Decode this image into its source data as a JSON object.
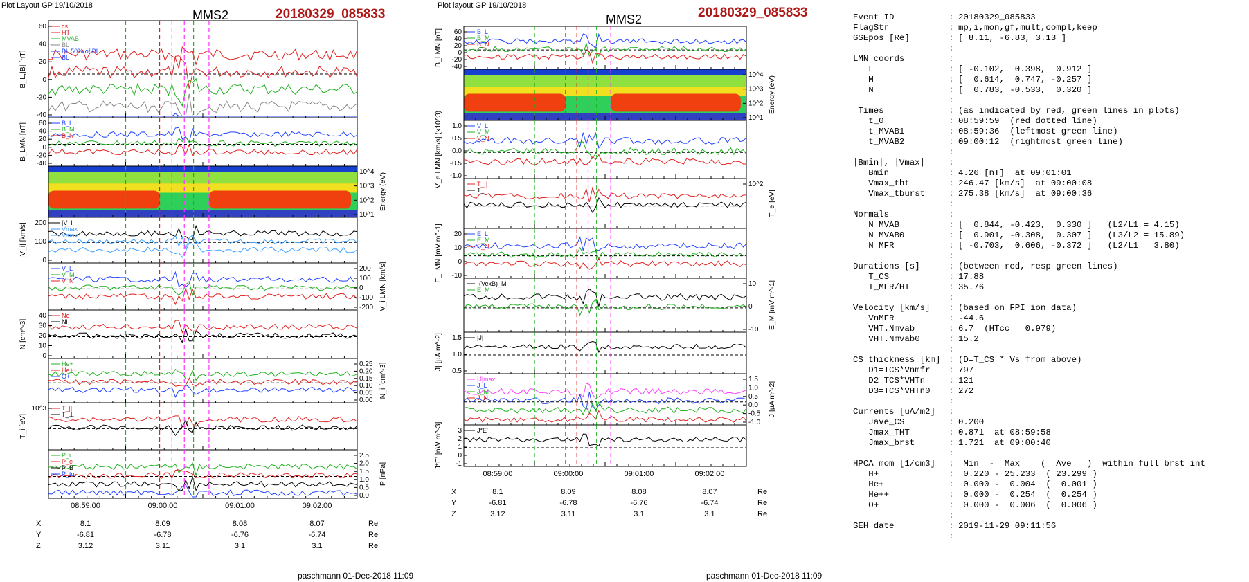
{
  "left_panel": {
    "header_left": "Plot Layout GP 19/10/2018",
    "probe": "MMS2",
    "event_id": "20180329_085833",
    "footer": "paschmann 01-Dec-2018 11:09",
    "time_ticks": [
      "08:59:00",
      "09:00:00",
      "09:01:00",
      "09:02:00"
    ],
    "coords": {
      "labels": [
        "X",
        "Y",
        "Z"
      ],
      "unit": "Re",
      "values": [
        [
          "8.1",
          "8.09",
          "8.08",
          "8.07"
        ],
        [
          "-6.81",
          "-6.78",
          "-6.76",
          "-6.74"
        ],
        [
          "3.12",
          "3.11",
          "3.1",
          "3.1"
        ]
      ]
    },
    "panels": [
      {
        "ylabel": "B_L,|B| [nT]",
        "ticks_left": [
          "60",
          "40",
          "20",
          "0",
          "-20",
          "-40"
        ],
        "ticks_right": [],
        "legend": [
          "cs",
          "HT",
          "MVAB",
          "BL",
          "BL 50% of BL",
          "BL"
        ],
        "legend_colors": [
          "#e02020",
          "#e02020",
          "#20b020",
          "#888888",
          "#2040ff",
          "#2040ff"
        ]
      },
      {
        "ylabel": "B_LMN [nT]",
        "ticks_left": [
          "60",
          "40",
          "20",
          "0",
          "-20",
          "-40"
        ],
        "ticks_right": [],
        "legend": [
          "B_L",
          "B_M",
          "B_N"
        ],
        "legend_colors": [
          "#2040ff",
          "#20b020",
          "#e02020"
        ]
      },
      {
        "ylabel": "Energy (eV)",
        "ticks_left": [],
        "ticks_right": [
          "10^4",
          "10^3",
          "10^2",
          "10^1"
        ],
        "legend": [],
        "legend_colors": []
      },
      {
        "ylabel": "|V_i| [km/s]",
        "ticks_left": [
          "200",
          "100",
          "0"
        ],
        "ticks_right": [],
        "legend": [
          "|V_i|",
          "Vmax",
          "Vmax"
        ],
        "legend_colors": [
          "#000000",
          "#40a0ff",
          "#40a0ff"
        ]
      },
      {
        "ylabel": "V_i LMN [km/s]",
        "ticks_left": [],
        "ticks_right": [
          "200",
          "100",
          "0",
          "-100",
          "-200"
        ],
        "legend": [
          "V_L",
          "V_M",
          "V_N"
        ],
        "legend_colors": [
          "#2040ff",
          "#20b020",
          "#e02020"
        ]
      },
      {
        "ylabel": "N [cm^-3]",
        "ticks_left": [
          "40",
          "30",
          "20",
          "10",
          "0"
        ],
        "ticks_right": [],
        "legend": [
          "Ne",
          "Ni"
        ],
        "legend_colors": [
          "#e02020",
          "#000000"
        ]
      },
      {
        "ylabel": "N_i [cm^-3]",
        "ticks_left": [],
        "ticks_right": [
          "0.25",
          "0.20",
          "0.15",
          "0.10",
          "0.05",
          "0.00"
        ],
        "legend": [
          "He+",
          "He++",
          "O+"
        ],
        "legend_colors": [
          "#20b020",
          "#e02020",
          "#2040ff"
        ]
      },
      {
        "ylabel": "T_i [eV]",
        "ticks_left": [
          "10^3"
        ],
        "ticks_right": [],
        "legend": [
          "T_||",
          "T_⊥"
        ],
        "legend_colors": [
          "#e02020",
          "#000000"
        ]
      },
      {
        "ylabel": "P [nPa]",
        "ticks_left": [],
        "ticks_right": [
          "2.5",
          "2.0",
          "1.5",
          "1.0",
          "0.5",
          "0.0"
        ],
        "legend": [
          "P_i",
          "P_e",
          "P_B",
          "P_tot"
        ],
        "legend_colors": [
          "#20b020",
          "#e02020",
          "#000000",
          "#2040ff"
        ]
      }
    ]
  },
  "middle_panel": {
    "header_left": "Plot layout GP 19/10/2018",
    "probe": "MMS2",
    "event_id": "20180329_085833",
    "footer": "paschmann 01-Dec-2018 11:09",
    "time_ticks": [
      "08:59:00",
      "09:00:00",
      "09:01:00",
      "09:02:00"
    ],
    "coords": {
      "labels": [
        "X",
        "Y",
        "Z"
      ],
      "unit": "Re",
      "values": [
        [
          "8.1",
          "8.09",
          "8.08",
          "8.07"
        ],
        [
          "-6.81",
          "-6.78",
          "-6.76",
          "-6.74"
        ],
        [
          "3.12",
          "3.11",
          "3.1",
          "3.1"
        ]
      ]
    },
    "panels": [
      {
        "ylabel": "B_LMN [nT]",
        "ticks_left": [
          "60",
          "40",
          "20",
          "0",
          "-20",
          "-40"
        ],
        "ticks_right": [],
        "legend": [
          "B_L",
          "B_M",
          "B_N"
        ],
        "legend_colors": [
          "#2040ff",
          "#20b020",
          "#e02020"
        ]
      },
      {
        "ylabel": "Energy (eV)",
        "ticks_left": [],
        "ticks_right": [
          "10^4",
          "10^3",
          "10^2",
          "10^1"
        ],
        "legend": [],
        "legend_colors": []
      },
      {
        "ylabel": "V_e LMN [km/s] (x10^3)",
        "ticks_left": [
          "1.0",
          "0.5",
          "0.0",
          "-0.5",
          "-1.0"
        ],
        "ticks_right": [],
        "legend": [
          "V_L",
          "V_M",
          "V_N"
        ],
        "legend_colors": [
          "#2040ff",
          "#20b020",
          "#e02020"
        ]
      },
      {
        "ylabel": "T_e [eV]",
        "ticks_left": [],
        "ticks_right": [
          "10^2"
        ],
        "legend": [
          "T_||",
          "T_⊥"
        ],
        "legend_colors": [
          "#e02020",
          "#000000"
        ]
      },
      {
        "ylabel": "E_LMN [mV m^-1]",
        "ticks_left": [
          "20",
          "10",
          "0",
          "-10"
        ],
        "ticks_right": [],
        "legend": [
          "E_L",
          "E_M",
          "E_N"
        ],
        "legend_colors": [
          "#2040ff",
          "#20b020",
          "#e02020"
        ]
      },
      {
        "ylabel": "E_M [mV m^-1]",
        "ticks_left": [],
        "ticks_right": [
          "10",
          "0",
          "-10"
        ],
        "legend": [
          "-(VexB)_M",
          "E_M"
        ],
        "legend_colors": [
          "#000000",
          "#20b020"
        ]
      },
      {
        "ylabel": "|J| [µA m^-2]",
        "ticks_left": [
          "1.5",
          "1.0",
          "0.5"
        ],
        "ticks_right": [],
        "legend": [
          "|J|"
        ],
        "legend_colors": [
          "#000000"
        ]
      },
      {
        "ylabel": "J [µA m^-2]",
        "ticks_left": [],
        "ticks_right": [
          "1.5",
          "1.0",
          "0.5",
          "0.0",
          "-0.5",
          "-1.0"
        ],
        "legend": [
          "|J|max",
          "J_L",
          "J_M",
          "J_N"
        ],
        "legend_colors": [
          "#ff40ff",
          "#2040ff",
          "#20b020",
          "#e02020"
        ]
      },
      {
        "ylabel": "J*E' [nW m^-3]",
        "ticks_left": [
          "3",
          "2",
          "1",
          "0",
          "-1"
        ],
        "ticks_right": [],
        "legend": [
          "J*E'"
        ],
        "legend_colors": [
          "#000000"
        ]
      }
    ]
  },
  "summary": {
    "rows": [
      {
        "label": "Event ID",
        "value": "20180329_085833"
      },
      {
        "label": "FlagStr",
        "value": "mp,i,mon,gf,mult,compl,keep"
      },
      {
        "label": "GSEpos [Re]",
        "value": "[ 8.11, -6.83, 3.13 ]"
      },
      {
        "label": "",
        "value": ""
      },
      {
        "label": "LMN coords",
        "value": ""
      },
      {
        "label": "   L",
        "value": "[ -0.102,  0.398,  0.912 ]"
      },
      {
        "label": "   M",
        "value": "[  0.614,  0.747, -0.257 ]"
      },
      {
        "label": "   N",
        "value": "[  0.783, -0.533,  0.320 ]"
      },
      {
        "label": "",
        "value": ""
      },
      {
        "label": " Times",
        "value": "(as indicated by red, green lines in plots)"
      },
      {
        "label": "   t_0",
        "value": "08:59:59  (red dotted line)"
      },
      {
        "label": "   t_MVAB1",
        "value": "08:59:36  (leftmost green line)"
      },
      {
        "label": "   t_MVAB2",
        "value": "09:00:12  (rightmost green line)"
      },
      {
        "label": "",
        "value": ""
      },
      {
        "label": "|Bmin|, |Vmax|",
        "value": ""
      },
      {
        "label": "   Bmin",
        "value": "4.26 [nT]  at 09:01:01"
      },
      {
        "label": "   Vmax_tht",
        "value": "246.47 [km/s]  at 09:00:08"
      },
      {
        "label": "   Vmax_tburst",
        "value": "275.38 [km/s]  at 09:00:36"
      },
      {
        "label": "",
        "value": ""
      },
      {
        "label": "Normals",
        "value": ""
      },
      {
        "label": "   N MVAB",
        "value": "[  0.844, -0.423,  0.330 ]   (L2/L1 = 4.15)"
      },
      {
        "label": "   N MVAB0",
        "value": "[  0.901, -0.308,  0.307 ]   (L3/L2 = 15.89)"
      },
      {
        "label": "   N MFR",
        "value": "[ -0.703,  0.606, -0.372 ]   (L2/L1 = 3.80)"
      },
      {
        "label": "",
        "value": ""
      },
      {
        "label": "Durations [s]",
        "value": "(between red, resp green lines)"
      },
      {
        "label": "   T_CS",
        "value": "17.88"
      },
      {
        "label": "   T_MFR/HT",
        "value": "35.76"
      },
      {
        "label": "",
        "value": ""
      },
      {
        "label": "Velocity [km/s]",
        "value": "(based on FPI ion data)"
      },
      {
        "label": "   VnMFR",
        "value": "-44.6"
      },
      {
        "label": "   VHT.Nmvab",
        "value": "6.7  (HTcc = 0.979)"
      },
      {
        "label": "   VHT.Nmvab0",
        "value": "15.2"
      },
      {
        "label": "",
        "value": ""
      },
      {
        "label": "CS thickness [km]",
        "value": "(D=T_CS * Vs from above)"
      },
      {
        "label": "   D1=TCS*Vnmfr",
        "value": "797"
      },
      {
        "label": "   D2=TCS*VHTn",
        "value": "121"
      },
      {
        "label": "   D3=TCS*VHTn0",
        "value": "272"
      },
      {
        "label": "",
        "value": ""
      },
      {
        "label": "Currents [uA/m2]",
        "value": ""
      },
      {
        "label": "   Jave_CS",
        "value": "0.200"
      },
      {
        "label": "   Jmax_THT",
        "value": "0.871  at 08:59:58"
      },
      {
        "label": "   Jmax_brst",
        "value": "1.721  at 09:00:40"
      },
      {
        "label": "",
        "value": ""
      },
      {
        "label": "HPCA mom [1/cm3]",
        "value": " Min  -  Max    (  Ave   )  within full brst int"
      },
      {
        "label": "   H+",
        "value": " 0.220 - 25.233  ( 23.299 )"
      },
      {
        "label": "   He+",
        "value": " 0.000 -  0.004  (  0.001 )"
      },
      {
        "label": "   He++",
        "value": " 0.000 -  0.254  (  0.254 )"
      },
      {
        "label": "   O+",
        "value": " 0.000 -  0.006  (  0.006 )"
      },
      {
        "label": "",
        "value": ""
      },
      {
        "label": "SEH date",
        "value": "2019-11-29 09:11:56"
      },
      {
        "label": "",
        "value": ""
      }
    ]
  },
  "chart_data": [
    {
      "type": "line",
      "title": "MMS2 20180329_085833",
      "x_range": [
        "08:58:33",
        "09:02:33"
      ],
      "markers": {
        "t_0": "08:59:59",
        "t_MVAB1": "08:59:36",
        "t_MVAB2": "09:00:12"
      },
      "series_colors": {
        "L": "#2040ff",
        "M": "#20b020",
        "N": "#e02020",
        "total": "#000000"
      }
    },
    {
      "type": "line",
      "title": "MMS2 20180329_085833",
      "x_range": [
        "08:58:33",
        "09:02:33"
      ],
      "markers": {
        "t_0": "08:59:59",
        "t_MVAB1": "08:59:36",
        "t_MVAB2": "09:00:12"
      }
    }
  ]
}
